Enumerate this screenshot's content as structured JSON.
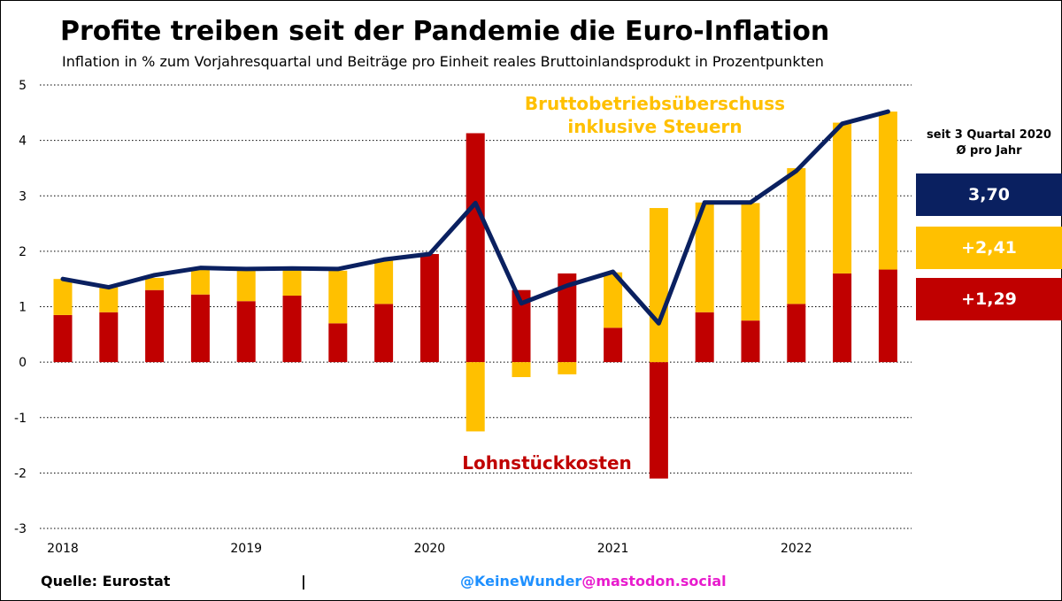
{
  "title": "Profite treiben seit der Pandemie die Euro-Inflation",
  "subtitle": "Inflation in % zum Vorjahresquartal und Beiträge pro Einheit reales Bruttoinlandsprodukt in Prozentpunkten",
  "colors": {
    "labor": "#c00000",
    "profit": "#ffc000",
    "inflation": "#0a2060"
  },
  "side_panel": {
    "heading_line1": "seit 3 Quartal 2020",
    "heading_line2": "Ø pro Jahr",
    "total": "3,70",
    "profit": "+2,41",
    "labor": "+1,29"
  },
  "footer": {
    "source": "Quelle: Eurostat",
    "separator": "|",
    "handle_user": "@KeineWunder",
    "handle_server": "@mastodon.social"
  },
  "chart_data": {
    "type": "bar",
    "stacked": true,
    "categories": [
      "2018Q1",
      "2018Q2",
      "2018Q3",
      "2018Q4",
      "2019Q1",
      "2019Q2",
      "2019Q3",
      "2019Q4",
      "2020Q1",
      "2020Q2",
      "2020Q3",
      "2020Q4",
      "2021Q1",
      "2021Q2",
      "2021Q3",
      "2021Q4",
      "2022Q1",
      "2022Q2",
      "2022Q3"
    ],
    "x_tick_labels": [
      "2018",
      "2019",
      "2020",
      "2021",
      "2022"
    ],
    "x_tick_index": [
      0,
      4,
      8,
      12,
      16
    ],
    "y_ticks": [
      5,
      4,
      3,
      2,
      1,
      0,
      -1,
      -2,
      -3
    ],
    "ylim": [
      -3,
      5
    ],
    "grid": true,
    "series": [
      {
        "name": "Lohnstückkosten",
        "kind": "bar",
        "color": "#c00000",
        "values": [
          0.85,
          0.9,
          1.3,
          1.22,
          1.1,
          1.2,
          0.7,
          1.05,
          1.95,
          4.13,
          1.3,
          1.6,
          0.62,
          -2.1,
          0.9,
          0.75,
          1.05,
          1.6,
          1.67
        ]
      },
      {
        "name": "Bruttobetriebsüberschuss inklusive Steuern",
        "kind": "bar",
        "color": "#ffc000",
        "values": [
          0.65,
          0.45,
          0.22,
          0.45,
          0.55,
          0.48,
          0.95,
          0.78,
          0.0,
          -1.25,
          -0.27,
          -0.22,
          1.0,
          2.78,
          1.98,
          2.12,
          2.45,
          2.72,
          2.85
        ]
      },
      {
        "name": "Inflation",
        "kind": "line",
        "color": "#0a2060",
        "values": [
          1.5,
          1.35,
          1.57,
          1.7,
          1.68,
          1.69,
          1.68,
          1.85,
          1.95,
          2.87,
          1.06,
          1.38,
          1.63,
          0.7,
          2.88,
          2.88,
          3.45,
          4.3,
          4.52
        ]
      }
    ],
    "annotations": [
      {
        "text_line1": "Bruttobetriebsüberschuss",
        "text_line2": "inklusive Steuern",
        "color": "#ffc000"
      },
      {
        "text_line1": "Lohnstückkosten",
        "color": "#c00000"
      }
    ]
  }
}
